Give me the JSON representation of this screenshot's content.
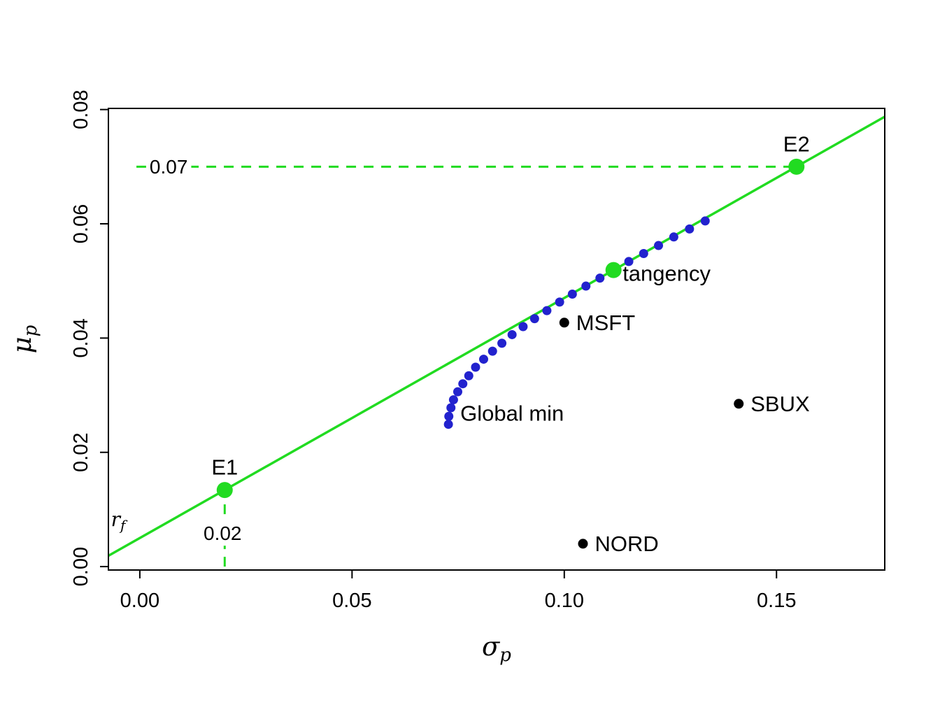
{
  "figure": {
    "background": "#ffffff"
  },
  "chart_data": {
    "type": "scatter",
    "title": "",
    "xlabel": {
      "base": "σ",
      "sub": "p"
    },
    "ylabel": {
      "base": "μ",
      "sub": "p"
    },
    "xlim": [
      -0.0074,
      0.1755
    ],
    "ylim": [
      -0.0006,
      0.0802
    ],
    "x_ticks": {
      "values": [
        0,
        0.05,
        0.1,
        0.15
      ],
      "labels": [
        "0.00",
        "0.05",
        "0.10",
        "0.15"
      ]
    },
    "y_ticks": {
      "values": [
        0,
        0.02,
        0.04,
        0.06,
        0.08
      ],
      "labels": [
        "0.00",
        "0.02",
        "0.04",
        "0.06",
        "0.08"
      ]
    },
    "colors": {
      "frontier_blue": "#2222CE",
      "line_green": "#21DB21",
      "asset_black": "#000000",
      "text": "#000000",
      "axis": "#000000"
    },
    "cal_line": {
      "rf": 0.005,
      "slope": 0.4202,
      "rf_label": {
        "base": "r",
        "sub": "f",
        "x": -0.0068,
        "y": 0.0071
      }
    },
    "dashed_guides": [
      {
        "type": "h",
        "y": 0.07,
        "x0": -0.0008,
        "x1": 0.1547,
        "label": "0.07",
        "label_x": 0.0068,
        "label_y": 0.07
      },
      {
        "type": "v",
        "x": 0.02,
        "y0": 0.0,
        "y1": 0.0134,
        "label": "0.02",
        "label_x": 0.0195,
        "label_y": 0.0058
      }
    ],
    "frontier": {
      "name": "efficient-frontier-dots",
      "points": [
        [
          0.0727,
          0.0249
        ],
        [
          0.0728,
          0.0263
        ],
        [
          0.0733,
          0.0278
        ],
        [
          0.0739,
          0.0292
        ],
        [
          0.0749,
          0.0306
        ],
        [
          0.0761,
          0.032
        ],
        [
          0.0775,
          0.0334
        ],
        [
          0.0791,
          0.0349
        ],
        [
          0.081,
          0.0363
        ],
        [
          0.0831,
          0.0377
        ],
        [
          0.0853,
          0.0391
        ],
        [
          0.0877,
          0.0406
        ],
        [
          0.0903,
          0.042
        ],
        [
          0.093,
          0.0434
        ],
        [
          0.0959,
          0.0448
        ],
        [
          0.0989,
          0.0463
        ],
        [
          0.1019,
          0.0477
        ],
        [
          0.1051,
          0.0491
        ],
        [
          0.1084,
          0.0505
        ],
        [
          0.1117,
          0.052
        ],
        [
          0.1152,
          0.0534
        ],
        [
          0.1187,
          0.0548
        ],
        [
          0.1222,
          0.0562
        ],
        [
          0.1258,
          0.0577
        ],
        [
          0.1295,
          0.0591
        ],
        [
          0.1332,
          0.0605
        ]
      ]
    },
    "highlight_points": [
      {
        "label": "E1",
        "x": 0.02,
        "y": 0.0134,
        "label_pos": "above"
      },
      {
        "label": "tangency",
        "x": 0.1116,
        "y": 0.0519,
        "label_pos": "right"
      },
      {
        "label": "E2",
        "x": 0.1547,
        "y": 0.07,
        "label_pos": "above"
      }
    ],
    "asset_points": [
      {
        "label": "MSFT",
        "x": 0.1,
        "y": 0.0427
      },
      {
        "label": "SBUX",
        "x": 0.1411,
        "y": 0.0285
      },
      {
        "label": "NORD",
        "x": 0.1044,
        "y": 0.004
      }
    ],
    "annotations": [
      {
        "text": "Global min",
        "x": 0.0755,
        "y": 0.0268
      }
    ]
  }
}
